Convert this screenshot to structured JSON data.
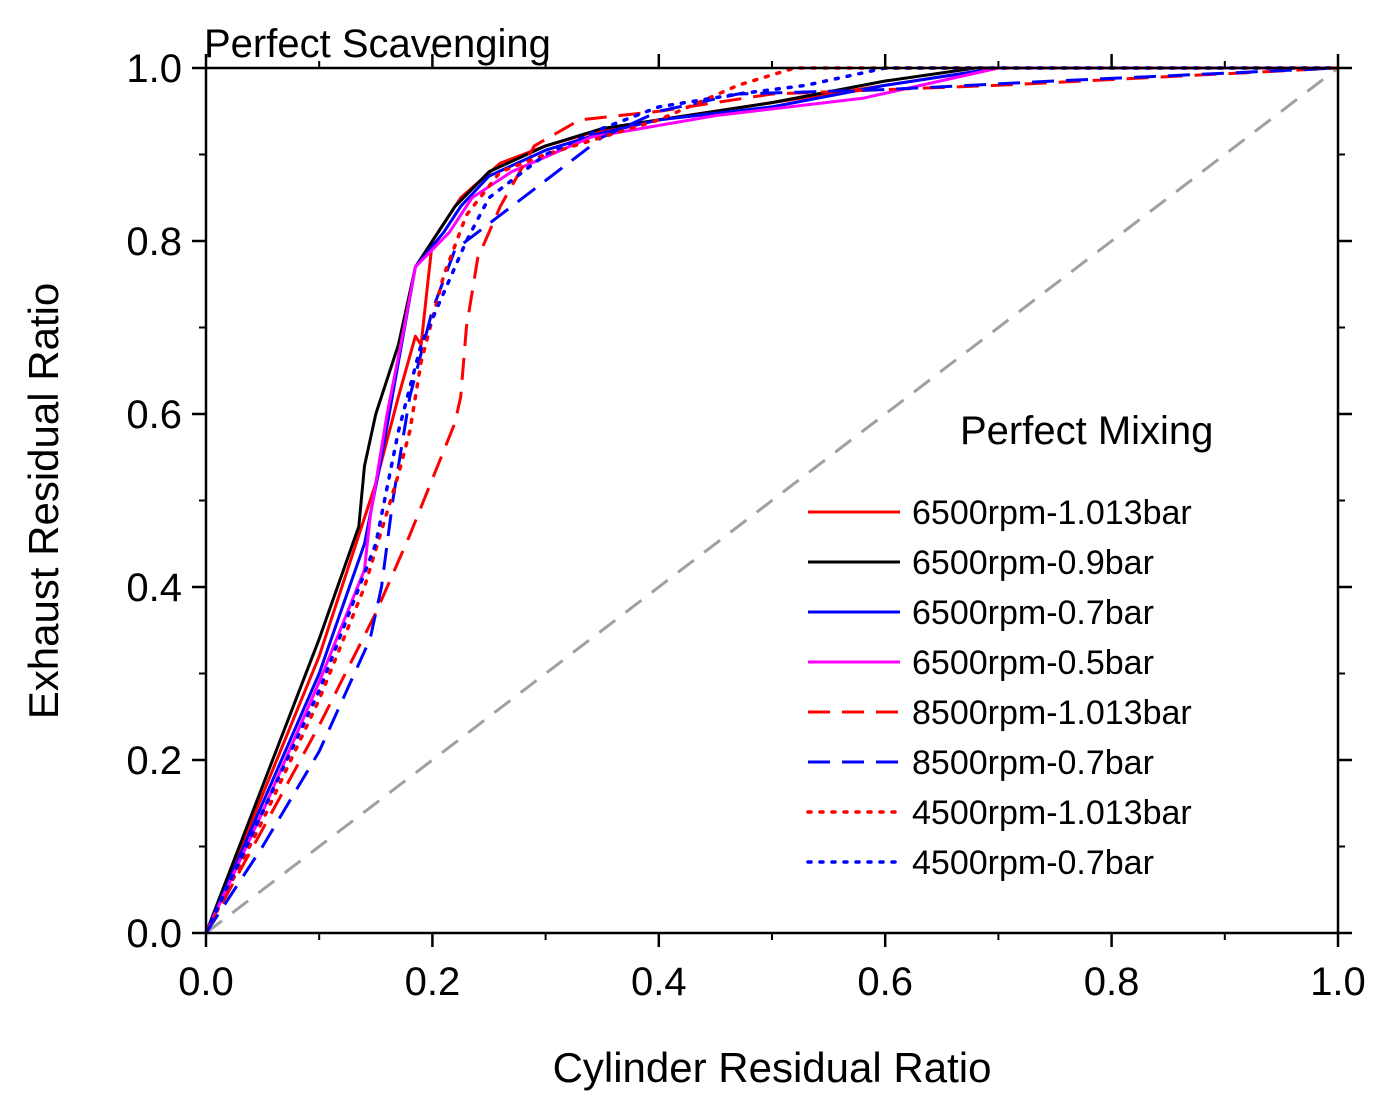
{
  "chart_data": {
    "type": "line",
    "title": "",
    "xlabel": "Cylinder Residual Ratio",
    "ylabel": "Exhaust Residual Ratio",
    "xlim": [
      0.0,
      1.0
    ],
    "ylim": [
      0.0,
      1.0
    ],
    "x_ticks": [
      "0.0",
      "0.2",
      "0.4",
      "0.6",
      "0.8",
      "1.0"
    ],
    "y_ticks": [
      "0.0",
      "0.2",
      "0.4",
      "0.6",
      "0.8",
      "1.0"
    ],
    "grid": false,
    "annotations": {
      "top": "Perfect Scavenging",
      "diagonal": "Perfect Mixing"
    },
    "legend_placement": "center-right",
    "reference_line": {
      "name": "perfect-mixing",
      "color": "#a0a0a0",
      "dash": "dashed",
      "points": [
        [
          0.0,
          0.0
        ],
        [
          1.0,
          1.0
        ]
      ]
    },
    "series": [
      {
        "name": "6500rpm-1.013bar",
        "color": "#ff0000",
        "dash": "solid",
        "points": [
          [
            0,
            0
          ],
          [
            0.05,
            0.16
          ],
          [
            0.1,
            0.32
          ],
          [
            0.13,
            0.44
          ],
          [
            0.15,
            0.52
          ],
          [
            0.17,
            0.62
          ],
          [
            0.185,
            0.69
          ],
          [
            0.19,
            0.68
          ],
          [
            0.195,
            0.74
          ],
          [
            0.2,
            0.8
          ],
          [
            0.225,
            0.85
          ],
          [
            0.26,
            0.89
          ],
          [
            0.3,
            0.91
          ],
          [
            0.34,
            0.925
          ],
          [
            0.4,
            0.94
          ],
          [
            0.5,
            0.96
          ],
          [
            0.6,
            0.98
          ],
          [
            0.7,
            1.0
          ],
          [
            1.0,
            1.0
          ]
        ]
      },
      {
        "name": "6500rpm-0.9bar",
        "color": "#000000",
        "dash": "solid",
        "points": [
          [
            0,
            0
          ],
          [
            0.05,
            0.17
          ],
          [
            0.1,
            0.34
          ],
          [
            0.135,
            0.47
          ],
          [
            0.14,
            0.54
          ],
          [
            0.15,
            0.6
          ],
          [
            0.17,
            0.68
          ],
          [
            0.185,
            0.77
          ],
          [
            0.2,
            0.8
          ],
          [
            0.22,
            0.84
          ],
          [
            0.25,
            0.88
          ],
          [
            0.3,
            0.91
          ],
          [
            0.35,
            0.93
          ],
          [
            0.4,
            0.94
          ],
          [
            0.5,
            0.96
          ],
          [
            0.6,
            0.985
          ],
          [
            0.68,
            1.0
          ],
          [
            1.0,
            1.0
          ]
        ]
      },
      {
        "name": "6500rpm-0.7bar",
        "color": "#0000ff",
        "dash": "solid",
        "points": [
          [
            0,
            0
          ],
          [
            0.05,
            0.15
          ],
          [
            0.1,
            0.3
          ],
          [
            0.14,
            0.45
          ],
          [
            0.155,
            0.55
          ],
          [
            0.17,
            0.66
          ],
          [
            0.185,
            0.77
          ],
          [
            0.21,
            0.81
          ],
          [
            0.225,
            0.84
          ],
          [
            0.25,
            0.875
          ],
          [
            0.3,
            0.905
          ],
          [
            0.35,
            0.925
          ],
          [
            0.4,
            0.94
          ],
          [
            0.5,
            0.955
          ],
          [
            0.6,
            0.98
          ],
          [
            0.7,
            1.0
          ],
          [
            1.0,
            1.0
          ]
        ]
      },
      {
        "name": "6500rpm-0.5bar",
        "color": "#ff00ff",
        "dash": "solid",
        "points": [
          [
            0,
            0
          ],
          [
            0.05,
            0.14
          ],
          [
            0.1,
            0.29
          ],
          [
            0.14,
            0.42
          ],
          [
            0.145,
            0.48
          ],
          [
            0.16,
            0.6
          ],
          [
            0.175,
            0.7
          ],
          [
            0.185,
            0.77
          ],
          [
            0.2,
            0.79
          ],
          [
            0.215,
            0.81
          ],
          [
            0.235,
            0.85
          ],
          [
            0.27,
            0.88
          ],
          [
            0.34,
            0.92
          ],
          [
            0.45,
            0.945
          ],
          [
            0.58,
            0.965
          ],
          [
            0.7,
            1.0
          ],
          [
            1.0,
            1.0
          ]
        ]
      },
      {
        "name": "8500rpm-1.013bar",
        "color": "#ff0000",
        "dash": "dashed",
        "points": [
          [
            0,
            0
          ],
          [
            0.05,
            0.12
          ],
          [
            0.1,
            0.24
          ],
          [
            0.15,
            0.37
          ],
          [
            0.18,
            0.46
          ],
          [
            0.22,
            0.59
          ],
          [
            0.225,
            0.62
          ],
          [
            0.23,
            0.7
          ],
          [
            0.24,
            0.78
          ],
          [
            0.26,
            0.84
          ],
          [
            0.29,
            0.91
          ],
          [
            0.33,
            0.94
          ],
          [
            0.4,
            0.95
          ],
          [
            0.5,
            0.97
          ],
          [
            0.6,
            0.975
          ],
          [
            0.7,
            0.98
          ],
          [
            1.0,
            1.0
          ]
        ]
      },
      {
        "name": "8500rpm-0.7bar",
        "color": "#0000ff",
        "dash": "dashed",
        "points": [
          [
            0,
            0
          ],
          [
            0.05,
            0.1
          ],
          [
            0.1,
            0.21
          ],
          [
            0.145,
            0.34
          ],
          [
            0.155,
            0.4
          ],
          [
            0.165,
            0.5
          ],
          [
            0.18,
            0.62
          ],
          [
            0.2,
            0.72
          ],
          [
            0.22,
            0.79
          ],
          [
            0.26,
            0.83
          ],
          [
            0.3,
            0.87
          ],
          [
            0.35,
            0.92
          ],
          [
            0.4,
            0.95
          ],
          [
            0.47,
            0.97
          ],
          [
            0.6,
            0.975
          ],
          [
            0.75,
            0.985
          ],
          [
            1.0,
            1.0
          ]
        ]
      },
      {
        "name": "4500rpm-1.013bar",
        "color": "#ff0000",
        "dash": "dotted",
        "points": [
          [
            0,
            0
          ],
          [
            0.05,
            0.13
          ],
          [
            0.1,
            0.27
          ],
          [
            0.14,
            0.4
          ],
          [
            0.17,
            0.53
          ],
          [
            0.18,
            0.58
          ],
          [
            0.19,
            0.66
          ],
          [
            0.21,
            0.76
          ],
          [
            0.23,
            0.83
          ],
          [
            0.26,
            0.88
          ],
          [
            0.3,
            0.9
          ],
          [
            0.4,
            0.94
          ],
          [
            0.47,
            0.98
          ],
          [
            0.52,
            1.0
          ],
          [
            1.0,
            1.0
          ]
        ]
      },
      {
        "name": "4500rpm-0.7bar",
        "color": "#0000ff",
        "dash": "dotted",
        "points": [
          [
            0,
            0
          ],
          [
            0.05,
            0.14
          ],
          [
            0.1,
            0.28
          ],
          [
            0.15,
            0.45
          ],
          [
            0.17,
            0.58
          ],
          [
            0.19,
            0.68
          ],
          [
            0.21,
            0.74
          ],
          [
            0.23,
            0.8
          ],
          [
            0.25,
            0.85
          ],
          [
            0.3,
            0.9
          ],
          [
            0.35,
            0.93
          ],
          [
            0.4,
            0.955
          ],
          [
            0.47,
            0.97
          ],
          [
            0.53,
            0.98
          ],
          [
            0.6,
            1.0
          ],
          [
            1.0,
            1.0
          ]
        ]
      }
    ]
  }
}
